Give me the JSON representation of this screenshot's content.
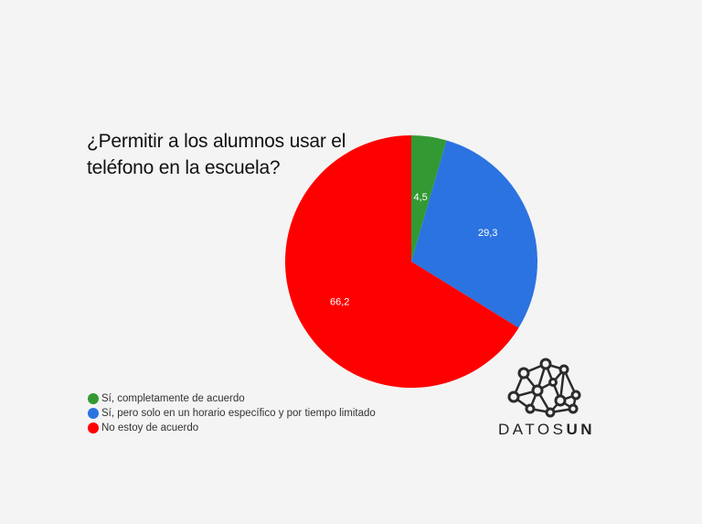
{
  "chart_data": {
    "type": "pie",
    "title": "¿Permitir a los alumnos usar el teléfono en la escuela?",
    "categories": [
      "Sí, completamente de acuerdo",
      "Sí, pero solo en un horario específico y por tiempo limitado",
      "No estoy de acuerdo"
    ],
    "values": [
      4.5,
      29.3,
      66.2
    ],
    "labels": [
      "4,5",
      "29,3",
      "66,2"
    ],
    "colors": [
      "#339933",
      "#2b73e0",
      "#ff0000"
    ],
    "start": "top",
    "direction": "clockwise",
    "legend_position": "bottom-left"
  },
  "logo": {
    "text_light": "DATOS",
    "text_bold": "UN"
  }
}
